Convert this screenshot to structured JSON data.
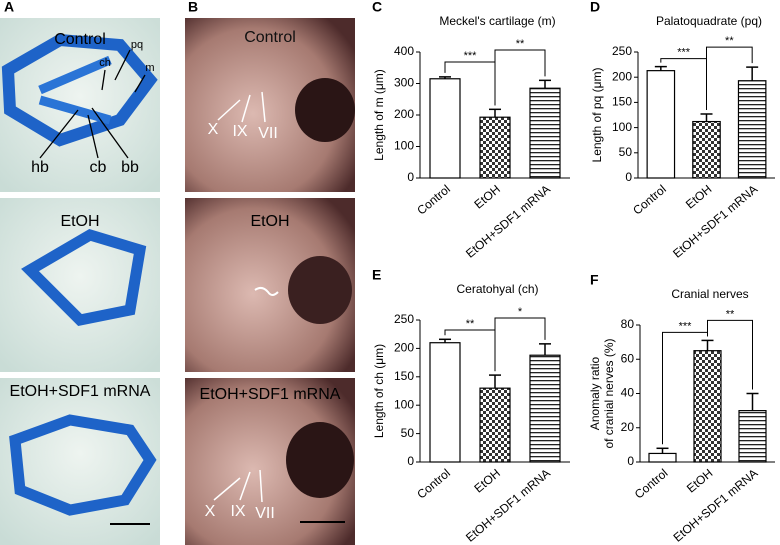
{
  "panels": {
    "a": {
      "letter": "A",
      "labels": [
        "Control",
        "EtOH",
        "EtOH+SDF1 mRNA"
      ],
      "structures": [
        "pq",
        "ch",
        "m",
        "hb",
        "cb",
        "bb"
      ]
    },
    "b": {
      "letter": "B",
      "labels": [
        "Control",
        "EtOH",
        "EtOH+SDF1 mRNA"
      ],
      "nerves_top": [
        "X",
        "IX",
        "VII"
      ],
      "nerves_bottom": [
        "X",
        "IX",
        "VII"
      ]
    }
  },
  "chart_data": [
    {
      "type": "bar",
      "letter": "C",
      "title": "Meckel's cartilage (m)",
      "ylabel": "Length of m (μm)",
      "categories": [
        "Control",
        "EtOH",
        "EtOH+SDF1 mRNA"
      ],
      "values": [
        315,
        193,
        285
      ],
      "errors": [
        6,
        25,
        25
      ],
      "fills": [
        "white",
        "checker",
        "hstripe"
      ],
      "ylim": [
        0,
        400
      ],
      "yticks": [
        0,
        100,
        200,
        300,
        400
      ],
      "annotations": [
        {
          "label": "***",
          "between": [
            "Control",
            "EtOH"
          ]
        },
        {
          "label": "**",
          "between": [
            "EtOH",
            "EtOH+SDF1 mRNA"
          ]
        }
      ]
    },
    {
      "type": "bar",
      "letter": "D",
      "title": "Palatoquadrate (pq)",
      "ylabel": "Length of pq (μm)",
      "categories": [
        "Control",
        "EtOH",
        "EtOH+SDF1 mRNA"
      ],
      "values": [
        213,
        112,
        193
      ],
      "errors": [
        8,
        15,
        27
      ],
      "fills": [
        "white",
        "checker",
        "hstripe"
      ],
      "ylim": [
        0,
        250
      ],
      "yticks": [
        0,
        50,
        100,
        150,
        200,
        250
      ],
      "annotations": [
        {
          "label": "***",
          "between": [
            "Control",
            "EtOH"
          ]
        },
        {
          "label": "**",
          "between": [
            "EtOH",
            "EtOH+SDF1 mRNA"
          ]
        }
      ]
    },
    {
      "type": "bar",
      "letter": "E",
      "title": "Ceratohyal (ch)",
      "ylabel": "Length of ch (μm)",
      "categories": [
        "Control",
        "EtOH",
        "EtOH+SDF1 mRNA"
      ],
      "values": [
        210,
        130,
        188
      ],
      "errors": [
        6,
        23,
        20
      ],
      "fills": [
        "white",
        "checker",
        "hstripe"
      ],
      "ylim": [
        0,
        250
      ],
      "yticks": [
        0,
        50,
        100,
        150,
        200,
        250
      ],
      "annotations": [
        {
          "label": "**",
          "between": [
            "Control",
            "EtOH"
          ]
        },
        {
          "label": "*",
          "between": [
            "EtOH",
            "EtOH+SDF1 mRNA"
          ]
        }
      ]
    },
    {
      "type": "bar",
      "letter": "F",
      "title": "Cranial nerves",
      "ylabel": [
        "Anomaly ratio",
        "of cranial nerves (%)"
      ],
      "categories": [
        "Control",
        "EtOH",
        "EtOH+SDF1 mRNA"
      ],
      "values": [
        5,
        65,
        30
      ],
      "errors": [
        3,
        6,
        10
      ],
      "fills": [
        "white",
        "checker",
        "hstripe"
      ],
      "ylim": [
        0,
        80
      ],
      "yticks": [
        0,
        20,
        40,
        60,
        80
      ],
      "annotations": [
        {
          "label": "***",
          "between": [
            "Control",
            "EtOH"
          ]
        },
        {
          "label": "**",
          "between": [
            "EtOH",
            "EtOH+SDF1 mRNA"
          ]
        }
      ]
    }
  ]
}
